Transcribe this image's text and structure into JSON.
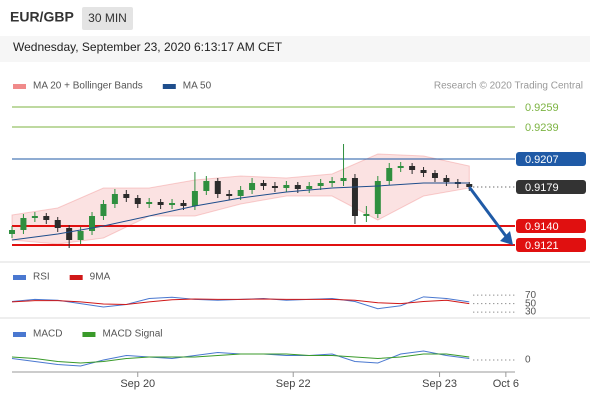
{
  "header": {
    "symbol": "EUR/GBP",
    "interval": "30 MIN",
    "timestamp": "Wednesday, September 23, 2020 6:13:17 AM CET"
  },
  "chart_data": [
    {
      "type": "candlestick",
      "credit": "Research © 2020 Trading Central",
      "xlim": [
        0,
        44
      ],
      "ylim": [
        0.9104,
        0.9291
      ],
      "up_color": "#2f8f3f",
      "down_color": "#2b2b2b",
      "open": [
        0.9132,
        0.9136,
        0.9148,
        0.915,
        0.9146,
        0.9138,
        0.9126,
        0.9135,
        0.915,
        0.9162,
        0.9172,
        0.9168,
        0.9162,
        0.9164,
        0.9161,
        0.9163,
        0.916,
        0.9175,
        0.9185,
        0.9172,
        0.917,
        0.9176,
        0.9183,
        0.918,
        0.9178,
        0.9181,
        0.9177,
        0.918,
        0.9183,
        0.9185,
        0.9188,
        0.915,
        0.9152,
        0.9185,
        0.9198,
        0.92,
        0.9196,
        0.9193,
        0.9188,
        0.9184,
        0.9182
      ],
      "high": [
        0.914,
        0.9152,
        0.9154,
        0.9153,
        0.9149,
        0.9141,
        0.9139,
        0.9154,
        0.9166,
        0.9177,
        0.9176,
        0.9171,
        0.9168,
        0.9167,
        0.9167,
        0.9166,
        0.9194,
        0.919,
        0.9188,
        0.9176,
        0.918,
        0.9188,
        0.9186,
        0.9184,
        0.9185,
        0.9184,
        0.9184,
        0.9187,
        0.9189,
        0.9222,
        0.9192,
        0.916,
        0.919,
        0.9203,
        0.9204,
        0.9203,
        0.9199,
        0.9196,
        0.9191,
        0.9187,
        0.9184
      ],
      "low": [
        0.9128,
        0.9132,
        0.9144,
        0.9142,
        0.9134,
        0.9118,
        0.9122,
        0.9131,
        0.9146,
        0.9158,
        0.9164,
        0.9158,
        0.9158,
        0.9157,
        0.9157,
        0.9156,
        0.9156,
        0.9171,
        0.9168,
        0.9166,
        0.9166,
        0.9172,
        0.9176,
        0.9174,
        0.9174,
        0.9173,
        0.9173,
        0.9176,
        0.9179,
        0.918,
        0.9142,
        0.9144,
        0.9148,
        0.9181,
        0.9194,
        0.9192,
        0.9189,
        0.9184,
        0.918,
        0.9178,
        0.9175
      ],
      "close": [
        0.9136,
        0.9148,
        0.915,
        0.9146,
        0.9138,
        0.9126,
        0.9135,
        0.915,
        0.9162,
        0.9172,
        0.9168,
        0.9162,
        0.9164,
        0.9161,
        0.9163,
        0.916,
        0.9175,
        0.9185,
        0.9172,
        0.917,
        0.9176,
        0.9183,
        0.918,
        0.9178,
        0.9181,
        0.9177,
        0.918,
        0.9183,
        0.9185,
        0.9188,
        0.915,
        0.9152,
        0.9185,
        0.9198,
        0.92,
        0.9196,
        0.9193,
        0.9188,
        0.9184,
        0.9182,
        0.9179
      ],
      "series": [
        {
          "name": "MA 20 + Bollinger Bands",
          "color": "#f08a8a",
          "x": [
            0,
            4,
            8,
            12,
            16,
            20,
            24,
            28,
            32,
            36,
            40
          ],
          "upper": [
            0.9151,
            0.9158,
            0.9178,
            0.9178,
            0.9186,
            0.919,
            0.9188,
            0.9192,
            0.9212,
            0.921,
            0.92
          ],
          "lower": [
            0.9126,
            0.9122,
            0.9128,
            0.915,
            0.915,
            0.9162,
            0.917,
            0.917,
            0.9146,
            0.917,
            0.9178
          ]
        },
        {
          "name": "MA 50",
          "color": "#1f4e8c",
          "x": [
            0,
            4,
            8,
            12,
            16,
            20,
            24,
            28,
            32,
            36,
            40
          ],
          "values": [
            0.9126,
            0.9132,
            0.914,
            0.915,
            0.916,
            0.9168,
            0.9174,
            0.9178,
            0.918,
            0.9183,
            0.9183
          ]
        }
      ],
      "levels": [
        {
          "value": 0.9259,
          "label": "0.9259",
          "color": "#7cb342",
          "boxed": false,
          "dotted": false,
          "width": 1
        },
        {
          "value": 0.9239,
          "label": "0.9239",
          "color": "#7cb342",
          "boxed": false,
          "dotted": false,
          "width": 1
        },
        {
          "value": 0.9207,
          "label": "0.9207",
          "color": "#1f5aa6",
          "boxed": true,
          "dotted": false,
          "width": 1
        },
        {
          "value": 0.9179,
          "label": "0.9179",
          "color": "#333333",
          "boxed": true,
          "dotted": true,
          "width": 1
        },
        {
          "value": 0.914,
          "label": "0.9140",
          "color": "#e01010",
          "boxed": true,
          "dotted": false,
          "width": 2
        },
        {
          "value": 0.9121,
          "label": "0.9121",
          "color": "#e01010",
          "boxed": true,
          "dotted": false,
          "width": 2
        }
      ]
    },
    {
      "type": "line",
      "xlim": [
        0,
        44
      ],
      "ylim": [
        16,
        94
      ],
      "yticks": [
        30,
        50,
        70
      ],
      "series": [
        {
          "name": "RSI",
          "color": "#4a78d0",
          "x": [
            0,
            2,
            4,
            6,
            8,
            10,
            12,
            14,
            16,
            18,
            20,
            22,
            24,
            26,
            28,
            30,
            32,
            34,
            36,
            38,
            40
          ],
          "values": [
            55,
            60,
            58,
            50,
            42,
            48,
            62,
            65,
            60,
            58,
            60,
            62,
            58,
            60,
            62,
            55,
            38,
            45,
            66,
            62,
            54
          ]
        },
        {
          "name": "9MA",
          "color": "#d01818",
          "x": [
            0,
            2,
            4,
            6,
            8,
            10,
            12,
            14,
            16,
            18,
            20,
            22,
            24,
            26,
            28,
            30,
            32,
            34,
            36,
            38,
            40
          ],
          "values": [
            54,
            57,
            57,
            54,
            49,
            48,
            54,
            59,
            61,
            60,
            60,
            61,
            60,
            60,
            60,
            58,
            52,
            50,
            55,
            58,
            50
          ]
        }
      ]
    },
    {
      "type": "line",
      "xlim": [
        0,
        44
      ],
      "ylim": [
        -0.0008,
        0.0012
      ],
      "yticks": [
        0
      ],
      "xticks": [
        {
          "value": 11,
          "label": "Sep 20"
        },
        {
          "value": 24.6,
          "label": "Sep 22"
        },
        {
          "value": 37.4,
          "label": "Sep 23"
        },
        {
          "value": 43.2,
          "label": "Oct 6"
        }
      ],
      "series": [
        {
          "name": "MACD",
          "color": "#4a78d0",
          "x": [
            0,
            2,
            4,
            6,
            8,
            10,
            12,
            14,
            16,
            18,
            20,
            22,
            24,
            26,
            28,
            30,
            32,
            34,
            36,
            38,
            40
          ],
          "values": [
            0.0001,
            -0.0001,
            -0.0003,
            -0.0004,
            0,
            0.0003,
            0.0002,
            0.0001,
            0.0003,
            0.0005,
            0.0004,
            0.0004,
            0.0003,
            0.0003,
            0.0004,
            -0.0001,
            -0.0002,
            0.0004,
            0.0006,
            0.0003,
            0.0001
          ]
        },
        {
          "name": "MACD Signal",
          "color": "#3a9a2a",
          "x": [
            0,
            2,
            4,
            6,
            8,
            10,
            12,
            14,
            16,
            18,
            20,
            22,
            24,
            26,
            28,
            30,
            32,
            34,
            36,
            38,
            40
          ],
          "values": [
            0.0002,
            0.0001,
            -0.0001,
            -0.0002,
            -0.0001,
            0.0001,
            0.0002,
            0.0002,
            0.0002,
            0.0003,
            0.0004,
            0.0004,
            0.0004,
            0.0003,
            0.0003,
            0.0002,
            0.0001,
            0.0002,
            0.0004,
            0.0004,
            0.0002
          ]
        }
      ]
    }
  ]
}
